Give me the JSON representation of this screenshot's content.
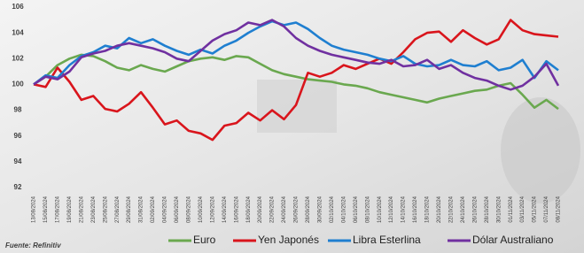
{
  "chart_data": {
    "type": "line",
    "source": "Fuente: Refinitiv",
    "categories": [
      "13/08/2024",
      "15/08/2024",
      "17/08/2024",
      "19/08/2024",
      "21/08/2024",
      "23/08/2024",
      "25/08/2024",
      "27/08/2024",
      "29/08/2024",
      "31/08/2024",
      "02/09/2024",
      "04/09/2024",
      "06/09/2024",
      "08/09/2024",
      "10/09/2024",
      "12/09/2024",
      "14/09/2024",
      "16/09/2024",
      "18/09/2024",
      "20/09/2024",
      "22/09/2024",
      "24/09/2024",
      "26/09/2024",
      "28/09/2024",
      "30/09/2024",
      "02/10/2024",
      "04/10/2024",
      "06/10/2024",
      "08/10/2024",
      "10/10/2024",
      "12/10/2024",
      "14/10/2024",
      "16/10/2024",
      "18/10/2024",
      "20/10/2024",
      "22/10/2024",
      "24/10/2024",
      "26/10/2024",
      "28/10/2024",
      "30/10/2024",
      "01/11/2024",
      "03/11/2024",
      "05/11/2024",
      "07/11/2024",
      "08/11/2024"
    ],
    "series": [
      {
        "name": "Euro",
        "color": "#6aa84f",
        "values": [
          100,
          100.6,
          101.5,
          102,
          102.3,
          102.2,
          101.8,
          101.3,
          101.1,
          101.5,
          101.2,
          101,
          101.4,
          101.8,
          102,
          102.1,
          101.9,
          102.2,
          102.1,
          101.6,
          101.1,
          100.8,
          100.6,
          100.4,
          100.3,
          100.2,
          100,
          99.9,
          99.7,
          99.4,
          99.2,
          99,
          98.8,
          98.6,
          98.9,
          99.1,
          99.3,
          99.5,
          99.6,
          99.9,
          100.1,
          99.2,
          98.2,
          98.8,
          98.1
        ]
      },
      {
        "name": "Yen Japonés",
        "color": "#d9151c",
        "values": [
          100,
          99.8,
          101.3,
          100.2,
          98.8,
          99.1,
          98.1,
          97.9,
          98.5,
          99.4,
          98.2,
          96.9,
          97.2,
          96.4,
          96.2,
          95.7,
          96.8,
          97,
          97.8,
          97.2,
          98,
          97.3,
          98.4,
          100.9,
          100.6,
          100.9,
          101.5,
          101.2,
          101.6,
          102,
          101.6,
          102.5,
          103.5,
          104,
          104.1,
          103.3,
          104.2,
          103.6,
          103.1,
          103.5,
          105,
          104.2,
          103.9,
          103.8,
          103.7
        ]
      },
      {
        "name": "Libra Esterlina",
        "color": "#1f7fd0",
        "values": [
          100,
          100.7,
          100.5,
          101.5,
          102.2,
          102.5,
          103,
          102.8,
          103.6,
          103.2,
          103.5,
          103,
          102.6,
          102.3,
          102.7,
          102.4,
          103,
          103.4,
          104,
          104.5,
          104.9,
          104.6,
          104.8,
          104.3,
          103.6,
          103,
          102.7,
          102.5,
          102.3,
          102,
          101.8,
          102.2,
          101.6,
          101.4,
          101.5,
          101.9,
          101.5,
          101.4,
          101.8,
          101.1,
          101.3,
          101.9,
          100.5,
          101.8,
          101.1
        ]
      },
      {
        "name": "Dólar Australiano",
        "color": "#7030a0",
        "values": [
          100,
          100.6,
          100.4,
          101,
          102.1,
          102.4,
          102.6,
          103,
          103.2,
          103,
          102.8,
          102.5,
          102,
          101.8,
          102.6,
          103.4,
          103.9,
          104.2,
          104.8,
          104.6,
          105,
          104.5,
          103.6,
          103,
          102.6,
          102.3,
          102.1,
          101.9,
          101.7,
          101.6,
          101.9,
          101.4,
          101.5,
          101.9,
          101.2,
          101.5,
          100.9,
          100.5,
          100.3,
          99.9,
          99.6,
          99.9,
          100.6,
          101.6,
          99.9
        ]
      }
    ],
    "ylim": [
      92,
      106
    ],
    "yticks": [
      92,
      94,
      96,
      98,
      100,
      102,
      104,
      106
    ],
    "grid": false
  }
}
